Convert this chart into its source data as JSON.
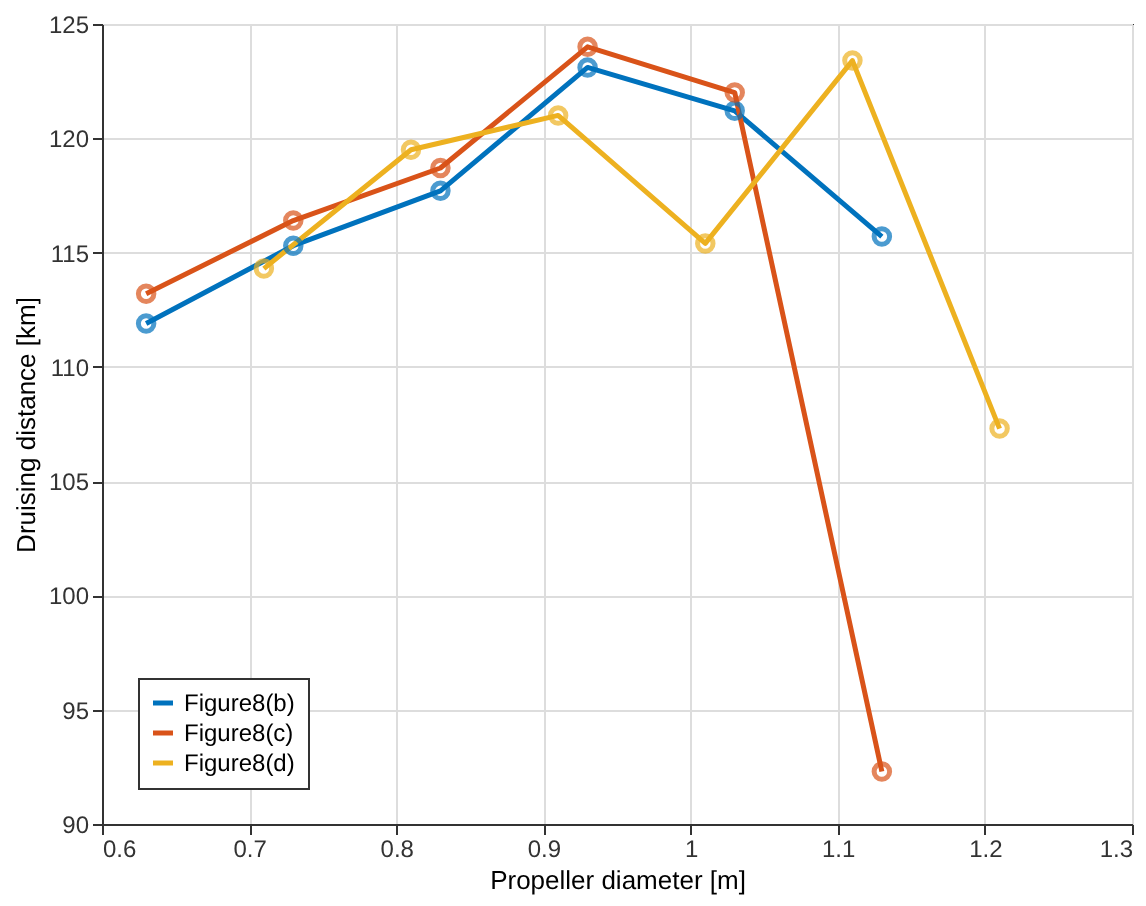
{
  "chart_data": {
    "type": "line",
    "xlabel": "Propeller diameter [m]",
    "ylabel": "Druising distance [km]",
    "xlim": [
      0.6,
      1.3
    ],
    "xticks": [
      0.6,
      0.7,
      0.8,
      0.9,
      1,
      1.1,
      1.2,
      1.3
    ],
    "ylim": [
      90,
      125
    ],
    "yticks": [
      90,
      95,
      100,
      105,
      110,
      115,
      120,
      125
    ],
    "grid": true,
    "legend": "bottom left",
    "marker": "circle",
    "line_style": "solid",
    "series": [
      {
        "name": "Figure8(b)",
        "color": "#0072bd",
        "x": [
          0.63,
          0.73,
          0.83,
          0.93,
          1.03,
          1.13
        ],
        "values": [
          111.9,
          115.3,
          117.7,
          123.1,
          121.2,
          115.7
        ]
      },
      {
        "name": "Figure8(c)",
        "color": "#d95319",
        "x": [
          0.63,
          0.73,
          0.83,
          0.93,
          1.03,
          1.13
        ],
        "values": [
          113.2,
          116.4,
          118.7,
          124.0,
          122.0,
          92.3
        ]
      },
      {
        "name": "Figure8(d)",
        "color": "#edb120",
        "x": [
          0.71,
          0.81,
          0.91,
          1.01,
          1.11,
          1.21
        ],
        "values": [
          114.3,
          119.5,
          121.0,
          115.4,
          123.4,
          107.3
        ]
      }
    ]
  }
}
